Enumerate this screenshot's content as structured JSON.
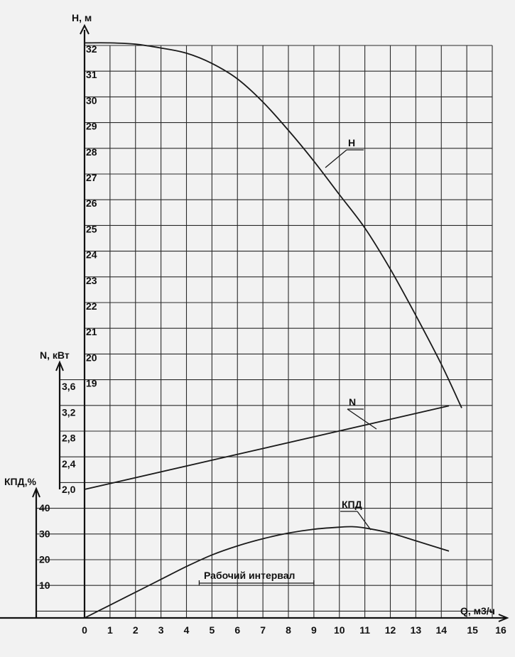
{
  "chart_data": {
    "type": "line",
    "x_axis": {
      "label": "Q, м3/ч",
      "range": [
        0,
        16
      ],
      "ticks": [
        0,
        1,
        2,
        3,
        4,
        5,
        6,
        7,
        8,
        9,
        10,
        11,
        12,
        13,
        14,
        15,
        16
      ]
    },
    "axes": {
      "H": {
        "label": "H, м",
        "range": [
          19,
          32
        ],
        "ticks": [
          32,
          31,
          30,
          29,
          28,
          27,
          26,
          25,
          24,
          23,
          22,
          21,
          20,
          19
        ]
      },
      "N": {
        "label": "N, кВт",
        "range": [
          2.0,
          3.6
        ],
        "ticks": [
          "3,6",
          "3,2",
          "2,8",
          "2,4",
          "2,0"
        ]
      },
      "eff": {
        "label": "КПД,%",
        "range": [
          0,
          40
        ],
        "ticks": [
          40,
          30,
          20,
          10
        ]
      }
    },
    "grid": true,
    "series": [
      {
        "name": "H",
        "axis": "H",
        "x": [
          0,
          1,
          2,
          3,
          4,
          5,
          6,
          7,
          8,
          9,
          10,
          11,
          12,
          13,
          14,
          14.8
        ],
        "y": [
          32.1,
          32.1,
          32.05,
          31.9,
          31.7,
          31.3,
          30.7,
          29.8,
          28.7,
          27.5,
          26.2,
          24.9,
          23.3,
          21.5,
          19.6,
          17.9
        ]
      },
      {
        "name": "N",
        "axis": "N",
        "x": [
          0,
          14.3
        ],
        "y": [
          2.0,
          3.3
        ]
      },
      {
        "name": "КПД",
        "axis": "eff",
        "x": [
          0,
          1,
          2,
          3,
          4,
          5,
          6,
          7,
          8,
          9,
          10,
          10.5,
          11,
          12,
          13,
          14.3
        ],
        "y": [
          0,
          5,
          10,
          15,
          20,
          24.5,
          28,
          30.8,
          33,
          34.5,
          35.3,
          35.5,
          35,
          33,
          30,
          26
        ]
      }
    ],
    "annotations": {
      "working_interval": {
        "label": "Рабочий интервал",
        "x_from": 4.5,
        "x_to": 9
      }
    }
  }
}
